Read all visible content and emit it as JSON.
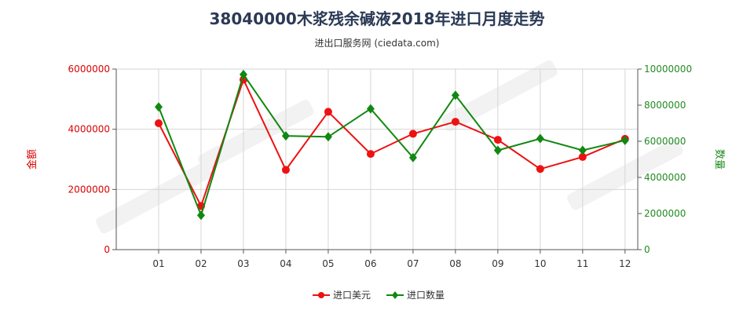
{
  "header": {
    "title": "38040000木浆残余碱液2018年进口月度走势",
    "subtitle": "进出口服务网 (ciedata.com)"
  },
  "colors": {
    "left_axis": "#dd0000",
    "right_axis": "#228B22",
    "amount": "#ee1111",
    "quantity": "#118811"
  },
  "chart_data": {
    "type": "line",
    "categories": [
      "01",
      "02",
      "03",
      "04",
      "05",
      "06",
      "07",
      "08",
      "09",
      "10",
      "11",
      "12"
    ],
    "ylabel_left": "金额",
    "ylabel_right": "数量",
    "ylim_left": [
      0,
      6000000
    ],
    "ylim_right": [
      0,
      10000000
    ],
    "yticks_left": [
      "0",
      "2000000",
      "4000000",
      "6000000"
    ],
    "yticks_right": [
      "0",
      "2000000",
      "4000000",
      "6000000",
      "8000000",
      "10000000"
    ],
    "grid": true,
    "legend_position": "bottom-center",
    "series": [
      {
        "name": "进口美元",
        "axis": "left",
        "values": [
          4200000,
          1450000,
          5650000,
          2650000,
          4580000,
          3180000,
          3850000,
          4250000,
          3650000,
          2680000,
          3080000,
          3680000
        ]
      },
      {
        "name": "进口数量",
        "axis": "right",
        "values": [
          7900000,
          1900000,
          9700000,
          6300000,
          6250000,
          7800000,
          5100000,
          8550000,
          5500000,
          6150000,
          5500000,
          6050000
        ]
      }
    ]
  }
}
